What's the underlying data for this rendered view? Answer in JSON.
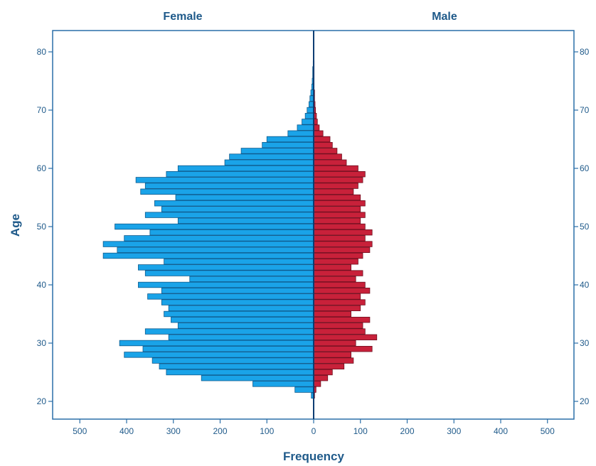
{
  "chart_data": {
    "type": "bar",
    "orientation": "horizontal",
    "layout": "population-pyramid",
    "panels": [
      "Female",
      "Male"
    ],
    "xlabel": "Frequency",
    "ylabel": "Age",
    "xlim": [
      0,
      550
    ],
    "ylim": [
      17,
      83
    ],
    "x_ticks": [
      0,
      100,
      200,
      300,
      400,
      500
    ],
    "x_tick_labels": [
      "0",
      "100",
      "200",
      "300",
      "400",
      "500"
    ],
    "y_ticks": [
      20,
      30,
      40,
      50,
      60,
      70,
      80
    ],
    "y_tick_labels": [
      "20",
      "30",
      "40",
      "50",
      "60",
      "70",
      "80"
    ],
    "grid": false,
    "legend": "none",
    "ages": [
      21,
      22,
      23,
      24,
      25,
      26,
      27,
      28,
      29,
      30,
      31,
      32,
      33,
      34,
      35,
      36,
      37,
      38,
      39,
      40,
      41,
      42,
      43,
      44,
      45,
      46,
      47,
      48,
      49,
      50,
      51,
      52,
      53,
      54,
      55,
      56,
      57,
      58,
      59,
      60,
      61,
      62,
      63,
      64,
      65,
      66,
      67,
      68,
      69,
      70,
      71,
      72,
      73,
      74,
      75,
      76,
      77,
      78
    ],
    "series": [
      {
        "name": "Female",
        "color": "#1aa3e8",
        "values": [
          5,
          40,
          130,
          240,
          315,
          330,
          345,
          405,
          365,
          415,
          310,
          360,
          290,
          305,
          320,
          310,
          325,
          355,
          325,
          375,
          265,
          360,
          375,
          320,
          450,
          420,
          450,
          405,
          350,
          425,
          290,
          360,
          325,
          340,
          295,
          370,
          360,
          380,
          315,
          290,
          190,
          180,
          155,
          110,
          100,
          55,
          35,
          25,
          18,
          14,
          10,
          8,
          6,
          4,
          3,
          2,
          2,
          1
        ]
      },
      {
        "name": "Male",
        "color": "#c8213a",
        "values": [
          2,
          5,
          15,
          30,
          40,
          65,
          85,
          80,
          125,
          90,
          135,
          110,
          105,
          120,
          80,
          100,
          110,
          100,
          120,
          110,
          90,
          105,
          80,
          95,
          105,
          120,
          125,
          110,
          125,
          110,
          100,
          110,
          100,
          110,
          100,
          85,
          95,
          105,
          110,
          95,
          70,
          60,
          50,
          40,
          35,
          20,
          12,
          8,
          6,
          4,
          3,
          2,
          2,
          1,
          1,
          1,
          1,
          1
        ]
      }
    ]
  }
}
